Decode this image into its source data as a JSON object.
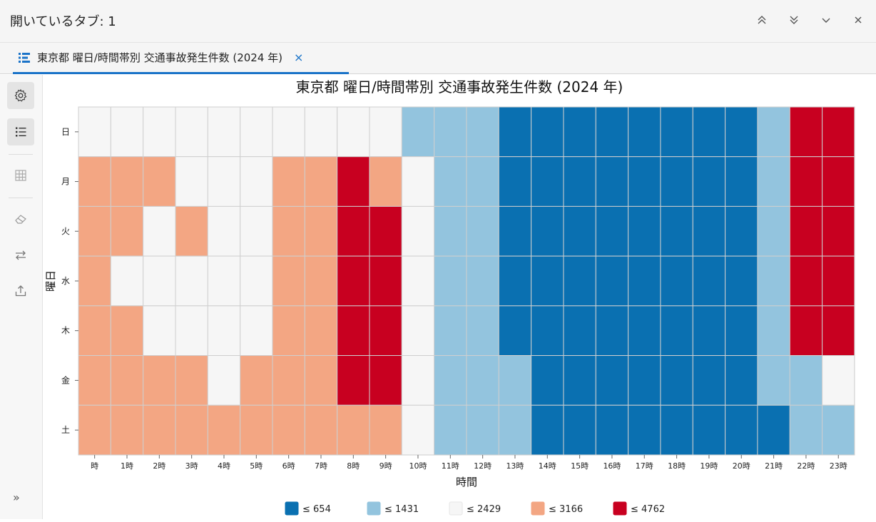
{
  "window": {
    "title": "開いているタブ: 1"
  },
  "tab": {
    "label": "東京都 曜日/時間帯別 交通事故発生件数 (2024 年)",
    "close_label": "×"
  },
  "sidebar": {
    "items": [
      {
        "icon": "gear-icon"
      },
      {
        "icon": "list-icon"
      },
      {
        "icon": "chart-type-icon"
      },
      {
        "icon": "eraser-icon"
      },
      {
        "icon": "swap-icon"
      },
      {
        "icon": "export-icon"
      }
    ],
    "expand_label": "»"
  },
  "colors": {
    "c1": "#0a70b1",
    "c2": "#93c4de",
    "c3": "#f6f6f6",
    "c4": "#f3a683",
    "c5": "#c80020"
  },
  "chart_data": {
    "type": "heatmap",
    "title": "東京都 曜日/時間帯別 交通事故発生件数 (2024 年)",
    "xlabel": "時間",
    "ylabel": "曜日",
    "x": [
      "時",
      "1時",
      "2時",
      "3時",
      "4時",
      "5時",
      "6時",
      "7時",
      "8時",
      "9時",
      "10時",
      "11時",
      "12時",
      "13時",
      "14時",
      "15時",
      "16時",
      "17時",
      "18時",
      "19時",
      "20時",
      "21時",
      "22時",
      "23時"
    ],
    "y": [
      "日",
      "月",
      "火",
      "水",
      "木",
      "金",
      "土"
    ],
    "legend_position": "bottom",
    "bins": [
      {
        "label": "≤ 654",
        "max": 654,
        "color": "#0a70b1"
      },
      {
        "label": "≤ 1431",
        "max": 1431,
        "color": "#93c4de"
      },
      {
        "label": "≤ 2429",
        "max": 2429,
        "color": "#f6f6f6"
      },
      {
        "label": "≤ 3166",
        "max": 3166,
        "color": "#f3a683"
      },
      {
        "label": "≤ 4762",
        "max": 4762,
        "color": "#c80020"
      }
    ],
    "bin_index": [
      [
        3,
        3,
        3,
        3,
        3,
        3,
        3,
        3,
        3,
        3,
        2,
        2,
        2,
        1,
        1,
        1,
        1,
        1,
        1,
        1,
        1,
        2,
        5,
        5
      ],
      [
        4,
        4,
        4,
        3,
        3,
        3,
        4,
        4,
        5,
        4,
        3,
        2,
        2,
        1,
        1,
        1,
        1,
        1,
        1,
        1,
        1,
        2,
        5,
        5
      ],
      [
        4,
        4,
        3,
        4,
        3,
        3,
        4,
        4,
        5,
        5,
        3,
        2,
        2,
        1,
        1,
        1,
        1,
        1,
        1,
        1,
        1,
        2,
        5,
        5
      ],
      [
        4,
        3,
        3,
        3,
        3,
        3,
        4,
        4,
        5,
        5,
        3,
        2,
        2,
        1,
        1,
        1,
        1,
        1,
        1,
        1,
        1,
        2,
        5,
        5
      ],
      [
        4,
        4,
        3,
        3,
        3,
        3,
        4,
        4,
        5,
        5,
        3,
        2,
        2,
        1,
        1,
        1,
        1,
        1,
        1,
        1,
        1,
        2,
        5,
        5
      ],
      [
        4,
        4,
        4,
        4,
        3,
        4,
        4,
        4,
        5,
        5,
        3,
        2,
        2,
        2,
        1,
        1,
        1,
        1,
        1,
        1,
        1,
        2,
        2,
        3
      ],
      [
        4,
        4,
        4,
        4,
        4,
        4,
        4,
        4,
        4,
        4,
        3,
        2,
        2,
        2,
        1,
        1,
        1,
        1,
        1,
        1,
        1,
        1,
        2,
        2
      ]
    ]
  }
}
